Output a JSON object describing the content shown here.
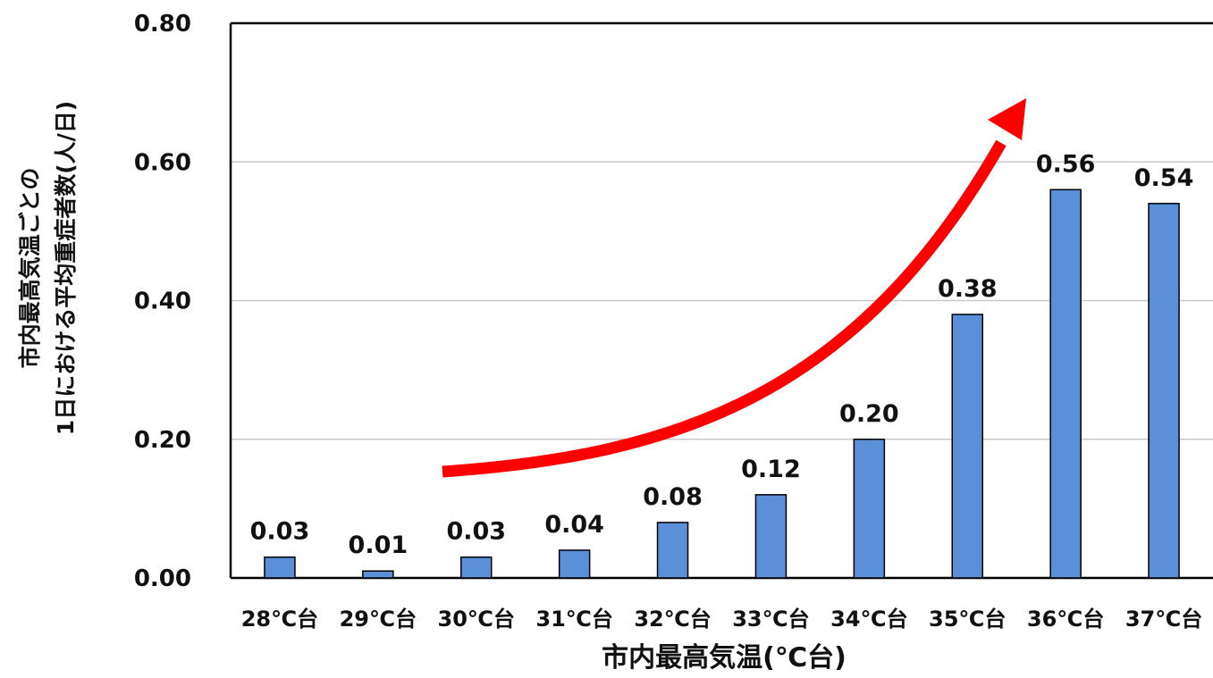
{
  "chart_data": {
    "type": "bar",
    "categories": [
      "28℃台",
      "29℃台",
      "30℃台",
      "31℃台",
      "32℃台",
      "33℃台",
      "34℃台",
      "35℃台",
      "36℃台",
      "37℃台"
    ],
    "values": [
      0.03,
      0.01,
      0.03,
      0.04,
      0.08,
      0.12,
      0.2,
      0.38,
      0.56,
      0.54
    ],
    "value_labels": [
      "0.03",
      "0.01",
      "0.03",
      "0.04",
      "0.08",
      "0.12",
      "0.20",
      "0.38",
      "0.56",
      "0.54"
    ],
    "title": "",
    "xlabel": "市内最高気温(℃台)",
    "ylabel": [
      "市内最高気温ごとの",
      "1日における平均重症者数(人/日)"
    ],
    "ylim": [
      0,
      0.8
    ],
    "yticks": [
      "0.00",
      "0.20",
      "0.40",
      "0.60",
      "0.80"
    ],
    "grid": true,
    "colors": {
      "bar": "#5b8fd8",
      "bar_border": "#000000",
      "arrow": "#ff0000",
      "grid": "#c8c8c8"
    },
    "annotations": [
      {
        "type": "arrow",
        "meaning": "increasing-trend"
      }
    ]
  }
}
